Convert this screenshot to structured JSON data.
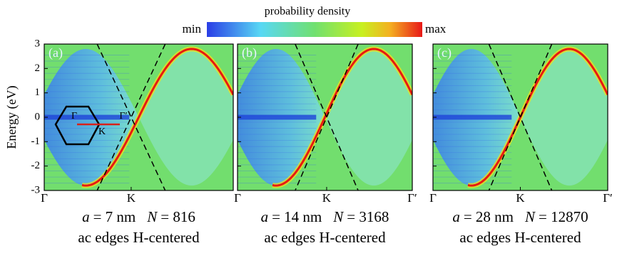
{
  "colorbar": {
    "title": "probability density",
    "min": "min",
    "max": "max"
  },
  "chart_data": [
    {
      "type": "heatmap",
      "panel_label": "(a)",
      "ylabel": "Energy (eV)",
      "ylim": [
        -3,
        3
      ],
      "yticks": [
        -3,
        -2,
        -1,
        0,
        1,
        2,
        3
      ],
      "xlim": [
        0,
        1
      ],
      "xticks": [
        {
          "value": 0,
          "label": "Γ"
        },
        {
          "value": 0.46,
          "label": "K"
        }
      ],
      "param_a": "a",
      "a_text": "= 7 nm",
      "param_n": "N",
      "n_text": "= 816",
      "caption": "ac edges H-centered",
      "inset": {
        "gamma": "Γ",
        "k": "K",
        "gamma_prime": "Γ′"
      }
    },
    {
      "type": "heatmap",
      "panel_label": "(b)",
      "ylim": [
        -3,
        3
      ],
      "yticks": [
        -3,
        -2,
        -1,
        0,
        1,
        2,
        3
      ],
      "xlim": [
        0,
        1
      ],
      "xticks": [
        {
          "value": 0,
          "label": "Γ"
        },
        {
          "value": 0.51,
          "label": "K"
        },
        {
          "value": 1,
          "label": "Γ′"
        }
      ],
      "param_a": "a",
      "a_text": "= 14 nm",
      "param_n": "N",
      "n_text": "= 3168",
      "caption": "ac edges H-centered"
    },
    {
      "type": "heatmap",
      "panel_label": "(c)",
      "ylim": [
        -3,
        3
      ],
      "yticks": [
        -3,
        -2,
        -1,
        0,
        1,
        2,
        3
      ],
      "xlim": [
        0,
        1
      ],
      "xticks": [
        {
          "value": 0,
          "label": "Γ"
        },
        {
          "value": 0.5,
          "label": "K"
        },
        {
          "value": 1,
          "label": "Γ′"
        }
      ],
      "param_a": "a",
      "a_text": "= 28 nm",
      "param_n": "N",
      "n_text": "= 12870",
      "caption": "ac edges H-centered"
    }
  ]
}
